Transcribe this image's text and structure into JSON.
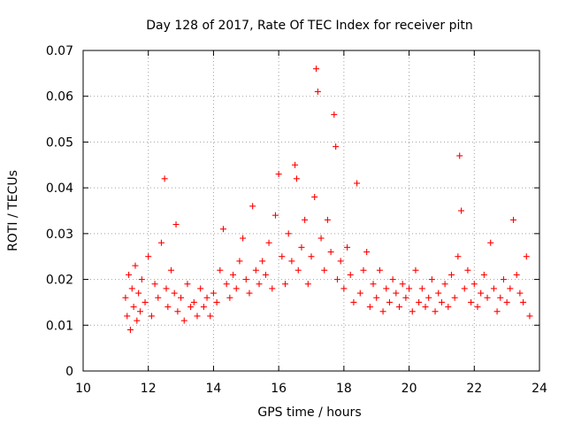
{
  "chart_data": {
    "type": "scatter",
    "title": "Day 128 of 2017, Rate Of TEC Index for receiver pitn",
    "xlabel": "GPS time / hours",
    "ylabel": "ROTI / TECUs",
    "xlim": [
      10,
      24
    ],
    "ylim": [
      0,
      0.07
    ],
    "x_ticks": [
      "10",
      "12",
      "14",
      "16",
      "18",
      "20",
      "22",
      "24"
    ],
    "y_ticks": [
      "0",
      "0.01",
      "0.02",
      "0.03",
      "0.04",
      "0.05",
      "0.06",
      "0.07"
    ],
    "grid": true,
    "marker": "+",
    "color": "#ff0000",
    "series": [
      {
        "x": [
          11.3,
          11.35,
          11.4,
          11.45,
          11.5,
          11.55,
          11.6,
          11.65,
          11.7,
          11.75,
          11.8,
          11.9,
          12.0,
          12.1,
          12.2,
          12.3,
          12.4,
          12.5,
          12.55,
          12.6,
          12.7,
          12.8,
          12.85,
          12.9,
          13.0,
          13.1,
          13.2,
          13.3,
          13.4,
          13.5,
          13.6,
          13.7,
          13.8,
          13.9,
          14.0,
          14.1,
          14.2,
          14.3,
          14.4,
          14.5,
          14.6,
          14.7,
          14.8,
          14.9,
          15.0,
          15.1,
          15.2,
          15.3,
          15.4,
          15.5,
          15.6,
          15.7,
          15.8,
          15.9,
          16.0,
          16.1,
          16.2,
          16.3,
          16.4,
          16.5,
          16.55,
          16.6,
          16.7,
          16.8,
          16.9,
          17.0,
          17.1,
          17.15,
          17.2,
          17.3,
          17.4,
          17.5,
          17.6,
          17.7,
          17.75,
          17.8,
          17.9,
          18.0,
          18.1,
          18.2,
          18.3,
          18.4,
          18.5,
          18.6,
          18.7,
          18.8,
          18.9,
          19.0,
          19.1,
          19.2,
          19.3,
          19.4,
          19.5,
          19.6,
          19.7,
          19.8,
          19.9,
          20.0,
          20.1,
          20.2,
          20.3,
          20.4,
          20.5,
          20.6,
          20.7,
          20.8,
          20.9,
          21.0,
          21.1,
          21.2,
          21.3,
          21.4,
          21.5,
          21.55,
          21.6,
          21.7,
          21.8,
          21.9,
          22.0,
          22.1,
          22.2,
          22.3,
          22.4,
          22.5,
          22.6,
          22.7,
          22.8,
          22.9,
          23.0,
          23.1,
          23.2,
          23.3,
          23.4,
          23.5,
          23.6,
          23.7
        ],
        "y": [
          0.016,
          0.012,
          0.021,
          0.009,
          0.018,
          0.014,
          0.023,
          0.011,
          0.017,
          0.013,
          0.02,
          0.015,
          0.025,
          0.012,
          0.019,
          0.016,
          0.028,
          0.042,
          0.018,
          0.014,
          0.022,
          0.017,
          0.032,
          0.013,
          0.016,
          0.011,
          0.019,
          0.014,
          0.015,
          0.012,
          0.018,
          0.014,
          0.016,
          0.012,
          0.017,
          0.015,
          0.022,
          0.031,
          0.019,
          0.016,
          0.021,
          0.018,
          0.024,
          0.029,
          0.02,
          0.017,
          0.036,
          0.022,
          0.019,
          0.024,
          0.021,
          0.028,
          0.018,
          0.034,
          0.043,
          0.025,
          0.019,
          0.03,
          0.024,
          0.045,
          0.042,
          0.022,
          0.027,
          0.033,
          0.019,
          0.025,
          0.038,
          0.066,
          0.061,
          0.029,
          0.022,
          0.033,
          0.026,
          0.056,
          0.049,
          0.02,
          0.024,
          0.018,
          0.027,
          0.021,
          0.015,
          0.041,
          0.017,
          0.022,
          0.026,
          0.014,
          0.019,
          0.016,
          0.022,
          0.013,
          0.018,
          0.015,
          0.02,
          0.017,
          0.014,
          0.019,
          0.016,
          0.018,
          0.013,
          0.022,
          0.015,
          0.018,
          0.014,
          0.016,
          0.02,
          0.013,
          0.017,
          0.015,
          0.019,
          0.014,
          0.021,
          0.016,
          0.025,
          0.047,
          0.035,
          0.018,
          0.022,
          0.015,
          0.019,
          0.014,
          0.017,
          0.021,
          0.016,
          0.028,
          0.018,
          0.013,
          0.016,
          0.02,
          0.015,
          0.018,
          0.033,
          0.021,
          0.017,
          0.015,
          0.025,
          0.012
        ]
      }
    ]
  }
}
